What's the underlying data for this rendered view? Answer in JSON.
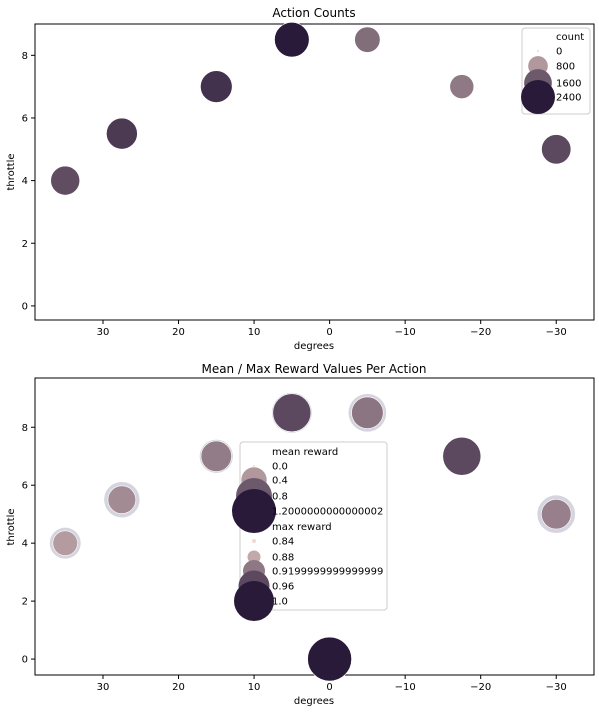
{
  "chart_data": [
    {
      "type": "scatter",
      "title": "Action Counts",
      "xlabel": "degrees",
      "ylabel": "throttle",
      "xlim": [
        39,
        -35
      ],
      "ylim": [
        -0.45,
        9.0
      ],
      "x_ticks": [
        30,
        20,
        10,
        0,
        -10,
        -20,
        -30
      ],
      "x_tick_labels": [
        "30",
        "20",
        "10",
        "0",
        "−10",
        "−20",
        "−30"
      ],
      "y_ticks": [
        0,
        2,
        4,
        6,
        8
      ],
      "y_tick_labels": [
        "0",
        "2",
        "4",
        "6",
        "8"
      ],
      "legend": {
        "placement": "top-right",
        "title": "count",
        "entries": [
          {
            "label": "0",
            "value": 0
          },
          {
            "label": "800",
            "value": 800
          },
          {
            "label": "1600",
            "value": 1600
          },
          {
            "label": "2400",
            "value": 2400
          }
        ]
      },
      "points": [
        {
          "x": 35,
          "y": 4,
          "count": 1750
        },
        {
          "x": 27.5,
          "y": 5.5,
          "count": 2000
        },
        {
          "x": 15,
          "y": 7,
          "count": 2100
        },
        {
          "x": 5,
          "y": 8.5,
          "count": 2500
        },
        {
          "x": -5,
          "y": 8.5,
          "count": 1350
        },
        {
          "x": -17.5,
          "y": 7,
          "count": 1200
        },
        {
          "x": -30,
          "y": 5,
          "count": 1800
        }
      ],
      "colors": {
        "low": "#f3d7cf",
        "high": "#2a1a3a"
      }
    },
    {
      "type": "scatter",
      "title": "Mean / Max Reward Values Per Action",
      "xlabel": "degrees",
      "ylabel": "throttle",
      "xlim": [
        39,
        -35
      ],
      "ylim": [
        -0.55,
        9.7
      ],
      "x_ticks": [
        30,
        20,
        10,
        0,
        -10,
        -20,
        -30
      ],
      "x_tick_labels": [
        "30",
        "20",
        "10",
        "0",
        "−10",
        "−20",
        "−30"
      ],
      "y_ticks": [
        0,
        2,
        4,
        6,
        8
      ],
      "y_tick_labels": [
        "0",
        "2",
        "4",
        "6",
        "8"
      ],
      "legend": {
        "placement": "center",
        "mean_title": "mean reward",
        "mean_entries": [
          {
            "label": "0.0",
            "value": 0.0
          },
          {
            "label": "0.4",
            "value": 0.4
          },
          {
            "label": "0.8",
            "value": 0.8
          },
          {
            "label": "1.2000000000000002",
            "value": 1.2
          }
        ],
        "max_title": "max reward",
        "max_entries": [
          {
            "label": "0.84",
            "value": 0.84
          },
          {
            "label": "0.88",
            "value": 0.88
          },
          {
            "label": "0.9199999999999999",
            "value": 0.92
          },
          {
            "label": "0.96",
            "value": 0.96
          },
          {
            "label": "1.0",
            "value": 1.0
          }
        ]
      },
      "points": [
        {
          "x": 35,
          "y": 4,
          "mean_reward": 0.38,
          "max_reward": 0.96
        },
        {
          "x": 27.5,
          "y": 5.5,
          "mean_reward": 0.48,
          "max_reward": 0.98
        },
        {
          "x": 15,
          "y": 7,
          "mean_reward": 0.58,
          "max_reward": 0.97
        },
        {
          "x": 5,
          "y": 8.5,
          "mean_reward": 0.9,
          "max_reward": 1.0
        },
        {
          "x": -5,
          "y": 8.5,
          "mean_reward": 0.62,
          "max_reward": 0.99
        },
        {
          "x": -17.5,
          "y": 7,
          "mean_reward": 0.9,
          "max_reward": 0.99
        },
        {
          "x": -30,
          "y": 5,
          "mean_reward": 0.55,
          "max_reward": 0.99
        },
        {
          "x": 0,
          "y": 0,
          "mean_reward": 1.2,
          "max_reward": 0.84
        }
      ],
      "colors": {
        "max_marker": "#d6d5df",
        "mean_low": "#f3d7cf",
        "mean_high": "#2a1a3a"
      }
    }
  ]
}
